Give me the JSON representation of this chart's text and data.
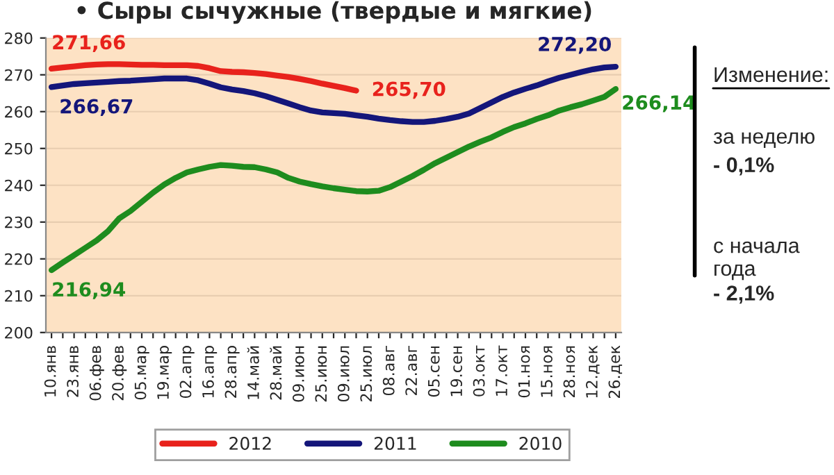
{
  "chart_data": {
    "type": "line",
    "title": "• Сыры сычужные (твердые и мягкие)",
    "categories": [
      "10.янв",
      null,
      "23.янв",
      null,
      "06.фев",
      null,
      "20.фев",
      null,
      "05.мар",
      null,
      "19.мар",
      null,
      "02.апр",
      null,
      "16.апр",
      null,
      "28.апр",
      null,
      "14.май",
      null,
      "28.май",
      null,
      "09.июн",
      null,
      "25.июн",
      null,
      "09.июл",
      null,
      "25.июл",
      null,
      "08.авг",
      null,
      "22.авг",
      null,
      "05.сен",
      null,
      "19.сен",
      null,
      "03.окт",
      null,
      "17.окт",
      null,
      "01.ноя",
      null,
      "15.ноя",
      null,
      "28.ноя",
      null,
      "12.дек",
      null,
      "26.дек"
    ],
    "series": [
      {
        "name": "2012",
        "color": "#e8221c",
        "values": [
          271.66,
          272.0,
          272.3,
          272.6,
          272.8,
          272.9,
          272.9,
          272.8,
          272.7,
          272.7,
          272.6,
          272.6,
          272.6,
          272.4,
          271.8,
          271.0,
          270.8,
          270.7,
          270.5,
          270.2,
          269.8,
          269.4,
          268.9,
          268.3,
          267.6,
          267.0,
          266.4,
          265.7,
          null,
          null,
          null,
          null,
          null,
          null,
          null,
          null,
          null,
          null,
          null,
          null,
          null,
          null,
          null,
          null,
          null,
          null,
          null,
          null,
          null,
          null,
          null
        ],
        "value_labels": [
          "271,66",
          null,
          null,
          null,
          null,
          null,
          null,
          null,
          null,
          null,
          null,
          null,
          null,
          null,
          null,
          null,
          null,
          null,
          null,
          null,
          null,
          null,
          null,
          null,
          null,
          null,
          null,
          "265,70",
          null,
          null,
          null,
          null,
          null,
          null,
          null,
          null,
          null,
          null,
          null,
          null,
          null,
          null,
          null,
          null,
          null,
          null,
          null,
          null,
          null,
          null,
          null
        ]
      },
      {
        "name": "2011",
        "color": "#14167a",
        "values": [
          266.67,
          267.1,
          267.5,
          267.7,
          267.9,
          268.1,
          268.3,
          268.4,
          268.6,
          268.8,
          269.0,
          269.0,
          269.0,
          268.5,
          267.6,
          266.6,
          266.0,
          265.6,
          265.0,
          264.2,
          263.2,
          262.2,
          261.2,
          260.3,
          259.8,
          259.6,
          259.4,
          259.0,
          258.6,
          258.1,
          257.7,
          257.4,
          257.2,
          257.2,
          257.5,
          258.0,
          258.6,
          259.5,
          261.0,
          262.5,
          264.0,
          265.2,
          266.2,
          267.1,
          268.2,
          269.2,
          270.0,
          270.8,
          271.5,
          272.0,
          272.2
        ],
        "value_labels": [
          "266,67",
          null,
          null,
          null,
          null,
          null,
          null,
          null,
          null,
          null,
          null,
          null,
          null,
          null,
          null,
          null,
          null,
          null,
          null,
          null,
          null,
          null,
          null,
          null,
          null,
          null,
          null,
          null,
          null,
          null,
          null,
          null,
          null,
          null,
          null,
          null,
          null,
          null,
          null,
          null,
          null,
          null,
          null,
          null,
          null,
          null,
          null,
          null,
          null,
          null,
          "272,20"
        ]
      },
      {
        "name": "2010",
        "color": "#1e8c1e",
        "values": [
          216.94,
          219.0,
          221.0,
          223.0,
          225.0,
          227.5,
          231.0,
          233.0,
          235.5,
          238.0,
          240.2,
          242.0,
          243.5,
          244.3,
          245.0,
          245.5,
          245.3,
          245.0,
          244.9,
          244.3,
          243.5,
          242.0,
          241.0,
          240.3,
          239.7,
          239.2,
          238.8,
          238.4,
          238.3,
          238.5,
          239.5,
          241.0,
          242.5,
          244.2,
          246.0,
          247.5,
          249.0,
          250.5,
          251.8,
          253.0,
          254.5,
          255.8,
          256.8,
          258.0,
          259.0,
          260.3,
          261.2,
          262.0,
          263.0,
          264.0,
          266.14
        ],
        "value_labels": [
          "216,94",
          null,
          null,
          null,
          null,
          null,
          null,
          null,
          null,
          null,
          null,
          null,
          null,
          null,
          null,
          null,
          null,
          null,
          null,
          null,
          null,
          null,
          null,
          null,
          null,
          null,
          null,
          null,
          null,
          null,
          null,
          null,
          null,
          null,
          null,
          null,
          null,
          null,
          null,
          null,
          null,
          null,
          null,
          null,
          null,
          null,
          null,
          null,
          null,
          null,
          "266,14"
        ]
      }
    ],
    "ylim": [
      200,
      280
    ],
    "yticks": [
      200,
      210,
      220,
      230,
      240,
      250,
      260,
      270,
      280
    ],
    "grid": "y",
    "legend": "bottom",
    "line_style": "solid",
    "marker": "none",
    "annotations": [
      "Изменение:",
      "за неделю",
      "- 0,1%",
      "с начала\nгода",
      "- 2,1%"
    ]
  }
}
